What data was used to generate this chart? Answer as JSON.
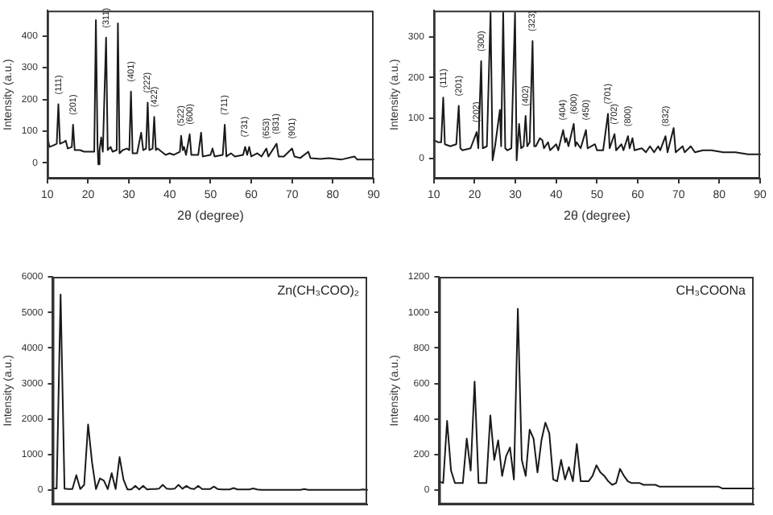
{
  "chart_data": [
    {
      "type": "line",
      "xlabel": "2θ (degree)",
      "ylabel": "Intensity (a.u.)",
      "color": "#1a1a1a",
      "marker": "none",
      "line_style": "solid",
      "grid": false,
      "xlim": [
        10,
        90
      ],
      "xticks": [
        10,
        20,
        30,
        40,
        50,
        60,
        70,
        80,
        90
      ],
      "ylim": [
        -50,
        480
      ],
      "yticks": [
        0,
        100,
        200,
        300,
        400
      ],
      "x": [
        10,
        10.5,
        11.5,
        12.3,
        12.7,
        13.1,
        14,
        14.5,
        15,
        16,
        16.3,
        16.7,
        18,
        19,
        20,
        21.5,
        21.9,
        22.3,
        22.5,
        22.8,
        23.2,
        23.6,
        24.4,
        24.8,
        25.5,
        26,
        27,
        27.3,
        27.7,
        28.5,
        29.5,
        30.1,
        30.5,
        30.9,
        32,
        33,
        33.5,
        34.2,
        34.6,
        35,
        35.8,
        36.2,
        36.6,
        37,
        38,
        39,
        40,
        41,
        42.5,
        42.8,
        43.2,
        43.5,
        44,
        44.9,
        45.3,
        47,
        47.7,
        48.1,
        50,
        50.5,
        51,
        53,
        53.5,
        53.9,
        55,
        56,
        58,
        58.5,
        59,
        59.5,
        60,
        61.5,
        62.5,
        63.7,
        64.2,
        66.2,
        66.7,
        68,
        70,
        70.6,
        72,
        74,
        74.5,
        77,
        79,
        82,
        85.3,
        86,
        90
      ],
      "values": [
        85,
        50,
        55,
        60,
        185,
        60,
        65,
        70,
        45,
        50,
        120,
        40,
        40,
        35,
        35,
        35,
        450,
        60,
        -5,
        40,
        80,
        35,
        395,
        40,
        50,
        35,
        40,
        440,
        30,
        40,
        45,
        40,
        225,
        30,
        30,
        95,
        40,
        45,
        190,
        40,
        45,
        145,
        40,
        45,
        35,
        25,
        30,
        25,
        35,
        85,
        40,
        50,
        25,
        90,
        25,
        25,
        95,
        20,
        25,
        45,
        20,
        25,
        120,
        20,
        30,
        20,
        25,
        50,
        25,
        50,
        20,
        30,
        20,
        45,
        20,
        60,
        20,
        20,
        45,
        20,
        15,
        35,
        15,
        12,
        15,
        10,
        20,
        10,
        10
      ],
      "annotations": [
        {
          "text": "(111)",
          "x": 12.7,
          "y": 185
        },
        {
          "text": "(201)",
          "x": 16.3,
          "y": 120
        },
        {
          "text": "(311)",
          "x": 24.4,
          "y": 395
        },
        {
          "text": "(401)",
          "x": 30.5,
          "y": 225
        },
        {
          "text": "(222)",
          "x": 34.6,
          "y": 190
        },
        {
          "text": "(422)",
          "x": 36.2,
          "y": 145
        },
        {
          "text": "(522)",
          "x": 42.8,
          "y": 85
        },
        {
          "text": "(600)",
          "x": 44.9,
          "y": 90
        },
        {
          "text": "(711)",
          "x": 53.5,
          "y": 120
        },
        {
          "text": "(731)",
          "x": 58.5,
          "y": 50
        },
        {
          "text": "(653)",
          "x": 63.7,
          "y": 45
        },
        {
          "text": "(831)",
          "x": 66.2,
          "y": 60
        },
        {
          "text": "(901)",
          "x": 70,
          "y": 45
        }
      ]
    },
    {
      "type": "line",
      "xlabel": "2θ (degree)",
      "ylabel": "Intensity (a.u.)",
      "color": "#1a1a1a",
      "marker": "none",
      "line_style": "solid",
      "grid": false,
      "xlim": [
        10,
        90
      ],
      "xticks": [
        10,
        20,
        30,
        40,
        50,
        60,
        70,
        80,
        90
      ],
      "ylim": [
        -50,
        365
      ],
      "yticks": [
        0,
        100,
        200,
        300
      ],
      "x": [
        10,
        11,
        11.8,
        12.3,
        12.7,
        14,
        15.5,
        16.1,
        16.5,
        17,
        19,
        20.5,
        20.9,
        21.6,
        22,
        23,
        23.9,
        24.4,
        25,
        26.2,
        26.5,
        27,
        27.5,
        28,
        29,
        29.9,
        30.3,
        30.9,
        31.4,
        32,
        32.5,
        32.9,
        33.5,
        34.2,
        34.6,
        35,
        36,
        36.6,
        37,
        38,
        38.5,
        40,
        40.5,
        41.7,
        42.2,
        42.5,
        43,
        44.3,
        44.7,
        45,
        46,
        47.3,
        47.7,
        49.5,
        50,
        51.5,
        52.7,
        53.1,
        54.3,
        54.7,
        56,
        56.5,
        57.6,
        58,
        58.7,
        59.2,
        61,
        62,
        63,
        64,
        65,
        65.5,
        66.8,
        67.3,
        68.8,
        69.3,
        71,
        71.5,
        73,
        74,
        76,
        78,
        81,
        84,
        87,
        90
      ],
      "values": [
        45,
        40,
        40,
        150,
        35,
        30,
        35,
        130,
        25,
        20,
        25,
        65,
        25,
        240,
        25,
        30,
        360,
        -5,
        30,
        120,
        30,
        360,
        25,
        20,
        25,
        360,
        -5,
        85,
        25,
        30,
        105,
        30,
        40,
        290,
        30,
        30,
        50,
        45,
        25,
        40,
        20,
        35,
        20,
        70,
        40,
        50,
        30,
        85,
        30,
        40,
        25,
        70,
        25,
        35,
        20,
        20,
        110,
        25,
        60,
        20,
        35,
        20,
        55,
        25,
        50,
        20,
        25,
        15,
        30,
        15,
        30,
        20,
        55,
        15,
        75,
        15,
        30,
        15,
        30,
        15,
        20,
        20,
        15,
        15,
        10,
        10
      ],
      "annotations": [
        {
          "text": "(111)",
          "x": 12.3,
          "y": 150
        },
        {
          "text": "(201)",
          "x": 16.1,
          "y": 130
        },
        {
          "text": "(202)",
          "x": 20.5,
          "y": 65
        },
        {
          "text": "(300)",
          "x": 21.6,
          "y": 240
        },
        {
          "text": "(402)",
          "x": 32.5,
          "y": 105
        },
        {
          "text": "(323)",
          "x": 34.2,
          "y": 290
        },
        {
          "text": "(404)",
          "x": 41.7,
          "y": 70
        },
        {
          "text": "(600)",
          "x": 44.3,
          "y": 85
        },
        {
          "text": "(450)",
          "x": 47.3,
          "y": 70
        },
        {
          "text": "(701)",
          "x": 52.7,
          "y": 110
        },
        {
          "text": "(702)",
          "x": 54.3,
          "y": 60
        },
        {
          "text": "(800)",
          "x": 57.6,
          "y": 55
        },
        {
          "text": "(832)",
          "x": 66.8,
          "y": 55
        }
      ]
    },
    {
      "type": "line",
      "ylabel": "Intensity (a.u.)",
      "color": "#1a1a1a",
      "marker": "none",
      "line_style": "solid",
      "grid": false,
      "tick_labels": "y",
      "categories": [
        null,
        null,
        null,
        null,
        null,
        null,
        null,
        null,
        null,
        null,
        null,
        null,
        null,
        null,
        null,
        null,
        null,
        null,
        null,
        null,
        null,
        null,
        null,
        null,
        null,
        null,
        null,
        null,
        null,
        null,
        null,
        null,
        null,
        null,
        null,
        null,
        null,
        null,
        null,
        null,
        null,
        null,
        null,
        null,
        null,
        null,
        null,
        null,
        null,
        null,
        null,
        null,
        null,
        null,
        null,
        null,
        null,
        null,
        null,
        null,
        null,
        null,
        null,
        null,
        null,
        null,
        null,
        null,
        null,
        null,
        null,
        null,
        null,
        null,
        null,
        null,
        null,
        null,
        null,
        null,
        null
      ],
      "ylim": [
        -400,
        6000
      ],
      "yticks": [
        0,
        1000,
        2000,
        3000,
        4000,
        5000,
        6000
      ],
      "values": [
        50,
        50,
        5500,
        40,
        30,
        30,
        420,
        30,
        150,
        1850,
        780,
        30,
        330,
        270,
        30,
        480,
        30,
        930,
        300,
        20,
        20,
        120,
        20,
        120,
        20,
        30,
        30,
        40,
        150,
        40,
        30,
        40,
        150,
        40,
        120,
        50,
        30,
        120,
        30,
        30,
        30,
        100,
        30,
        20,
        20,
        20,
        60,
        20,
        20,
        20,
        20,
        50,
        20,
        10,
        10,
        10,
        10,
        10,
        10,
        10,
        10,
        10,
        10,
        10,
        30,
        10,
        10,
        10,
        10,
        10,
        10,
        10,
        10,
        10,
        10,
        10,
        10,
        10,
        10,
        20,
        10
      ],
      "annotations": [
        "Zn(CH₃COO)₂"
      ]
    },
    {
      "type": "line",
      "ylabel": "Intensity (a.u.)",
      "color": "#1a1a1a",
      "marker": "none",
      "line_style": "solid",
      "grid": false,
      "tick_labels": "y",
      "categories": [
        null,
        null,
        null,
        null,
        null,
        null,
        null,
        null,
        null,
        null,
        null,
        null,
        null,
        null,
        null,
        null,
        null,
        null,
        null,
        null,
        null,
        null,
        null,
        null,
        null,
        null,
        null,
        null,
        null,
        null,
        null,
        null,
        null,
        null,
        null,
        null,
        null,
        null,
        null,
        null,
        null,
        null,
        null,
        null,
        null,
        null,
        null,
        null,
        null,
        null,
        null,
        null,
        null,
        null,
        null,
        null,
        null,
        null,
        null,
        null,
        null,
        null,
        null,
        null,
        null,
        null,
        null,
        null,
        null,
        null,
        null,
        null,
        null,
        null,
        null,
        null,
        null,
        null,
        null,
        null,
        null
      ],
      "ylim": [
        -80,
        1200
      ],
      "yticks": [
        0,
        200,
        400,
        600,
        800,
        1000,
        1200
      ],
      "values": [
        50,
        40,
        390,
        110,
        40,
        40,
        40,
        290,
        110,
        610,
        40,
        40,
        40,
        420,
        170,
        280,
        80,
        190,
        240,
        60,
        1020,
        170,
        80,
        340,
        290,
        100,
        280,
        380,
        320,
        60,
        50,
        170,
        60,
        130,
        50,
        260,
        50,
        50,
        50,
        80,
        140,
        100,
        80,
        50,
        30,
        40,
        120,
        80,
        50,
        40,
        40,
        40,
        30,
        30,
        30,
        30,
        20,
        20,
        20,
        20,
        20,
        20,
        20,
        20,
        20,
        20,
        20,
        20,
        20,
        20,
        20,
        20,
        10,
        10,
        10,
        10,
        10,
        10,
        10,
        10,
        10
      ],
      "annotations": [
        "CH₃COONa"
      ]
    }
  ]
}
